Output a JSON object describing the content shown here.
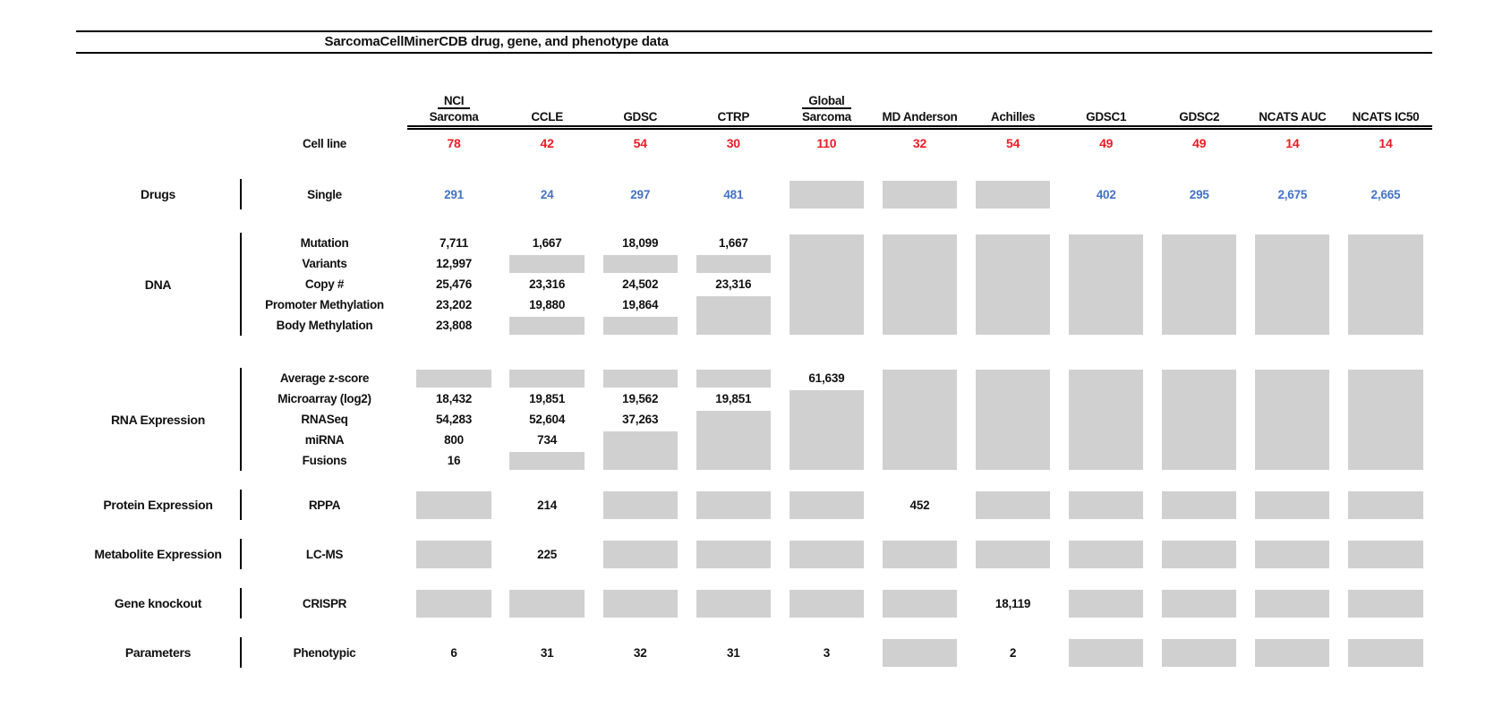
{
  "title": "SarcomaCellMinerCDB drug, gene, and phenotype data",
  "colors": {
    "cell_line_count_red": "#ed1c24",
    "drug_count_blue": "#4472c4",
    "no_data_gray": "#d0d0d0",
    "line_black": "#000000"
  },
  "chart_data": {
    "type": "table",
    "title": "SarcomaCellMinerCDB drug, gene, and phenotype data",
    "cell_encoding": {
      "~N": "gray no-data box spanning N rows",
      ".": "cell covered by a gray box spanning from a row above",
      "": "empty cell"
    },
    "columns": [
      {
        "top": "NCI",
        "label": "Sarcoma"
      },
      {
        "label": "CCLE"
      },
      {
        "label": "GDSC"
      },
      {
        "label": "CTRP"
      },
      {
        "top": "Global",
        "label": "Sarcoma"
      },
      {
        "label": "MD Anderson"
      },
      {
        "label": "Achilles"
      },
      {
        "label": "GDSC1"
      },
      {
        "label": "GDSC2"
      },
      {
        "label": "NCATS AUC"
      },
      {
        "label": "NCATS IC50"
      }
    ],
    "cell_line_row": {
      "label": "Cell line",
      "counts": [
        "78",
        "42",
        "54",
        "30",
        "110",
        "32",
        "54",
        "49",
        "49",
        "14",
        "14"
      ]
    },
    "sections": [
      {
        "group": "Drugs",
        "value_color": "blue",
        "rows": [
          {
            "label": "Single",
            "cells": [
              "291",
              "24",
              "297",
              "481",
              "~1",
              "~1",
              "~1",
              "402",
              "295",
              "2,675",
              "2,665"
            ]
          }
        ]
      },
      {
        "group": "DNA",
        "value_color": "black",
        "rows": [
          {
            "label": "Mutation",
            "cells": [
              "7,711",
              "1,667",
              "18,099",
              "1,667",
              "~5",
              "~5",
              "~5",
              "~5",
              "~5",
              "~5",
              "~5"
            ]
          },
          {
            "label": "Variants",
            "cells": [
              "12,997",
              "~1",
              "~1",
              "~1",
              ".",
              ".",
              ".",
              ".",
              ".",
              ".",
              "."
            ]
          },
          {
            "label": "Copy #",
            "cells": [
              "25,476",
              "23,316",
              "24,502",
              "23,316",
              ".",
              ".",
              ".",
              ".",
              ".",
              ".",
              "."
            ]
          },
          {
            "label": "Promoter Methylation",
            "cells": [
              "23,202",
              "19,880",
              "19,864",
              "~2",
              ".",
              ".",
              ".",
              ".",
              ".",
              ".",
              "."
            ]
          },
          {
            "label": "Body Methylation",
            "cells": [
              "23,808",
              "~1",
              "~1",
              ".",
              ".",
              ".",
              ".",
              ".",
              ".",
              ".",
              "."
            ]
          }
        ]
      },
      {
        "group": "RNA Expression",
        "value_color": "black",
        "rows": [
          {
            "label": "Average z-score",
            "cells": [
              "~1",
              "~1",
              "~1",
              "~1",
              "61,639",
              "~5",
              "~5",
              "~5",
              "~5",
              "~5",
              "~5"
            ]
          },
          {
            "label": "Microarray (log2)",
            "cells": [
              "18,432",
              "19,851",
              "19,562",
              "19,851",
              "~4",
              ".",
              ".",
              ".",
              ".",
              ".",
              "."
            ]
          },
          {
            "label": "RNASeq",
            "cells": [
              "54,283",
              "52,604",
              "37,263",
              "~3",
              ".",
              ".",
              ".",
              ".",
              ".",
              ".",
              "."
            ]
          },
          {
            "label": "miRNA",
            "cells": [
              "800",
              "734",
              "~2",
              ".",
              ".",
              ".",
              ".",
              ".",
              ".",
              ".",
              "."
            ]
          },
          {
            "label": "Fusions",
            "cells": [
              "16",
              "~1",
              ".",
              ".",
              ".",
              ".",
              ".",
              ".",
              ".",
              ".",
              "."
            ]
          }
        ]
      },
      {
        "group": "Protein Expression",
        "value_color": "black",
        "rows": [
          {
            "label": "RPPA",
            "cells": [
              "~1",
              "214",
              "~1",
              "~1",
              "~1",
              "452",
              "~1",
              "~1",
              "~1",
              "~1",
              "~1"
            ]
          }
        ]
      },
      {
        "group": "Metabolite Expression",
        "value_color": "black",
        "rows": [
          {
            "label": "LC-MS",
            "cells": [
              "~1",
              "225",
              "~1",
              "~1",
              "~1",
              "~1",
              "~1",
              "~1",
              "~1",
              "~1",
              "~1"
            ]
          }
        ]
      },
      {
        "group": "Gene knockout",
        "value_color": "black",
        "rows": [
          {
            "label": "CRISPR",
            "cells": [
              "~1",
              "~1",
              "~1",
              "~1",
              "~1",
              "~1",
              "18,119",
              "~1",
              "~1",
              "~1",
              "~1"
            ]
          }
        ]
      },
      {
        "group": "Parameters",
        "value_color": "black",
        "rows": [
          {
            "label": "Phenotypic",
            "cells": [
              "6",
              "31",
              "32",
              "31",
              "3",
              "~1",
              "2",
              "~1",
              "~1",
              "~1",
              "~1"
            ]
          }
        ]
      }
    ]
  }
}
